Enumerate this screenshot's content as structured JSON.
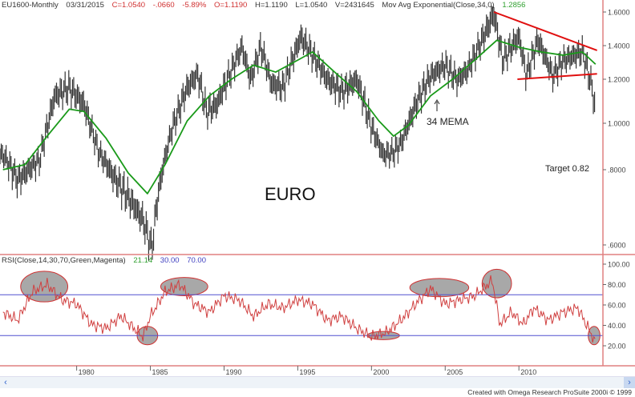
{
  "header": {
    "symbol": "EU1600-Monthly",
    "date": "03/31/2015",
    "close": "C=1.0540",
    "change": "-.0660",
    "change_pct": "-5.89%",
    "open": "O=1.1190",
    "high": "H=1.1190",
    "low": "L=1.0540",
    "volume": "V=2431645",
    "indicator": "Mov Avg Exponential(Close,34,0)",
    "indicator_value": "1.2856"
  },
  "rsi_header": {
    "label": "RSI(Close,14,30,70,Green,Magenta)",
    "value": "21.14",
    "low_level": "30.00",
    "high_level": "70.00"
  },
  "colors": {
    "price": "#333333",
    "ema": "#1a9a1a",
    "rsi": "#d04040",
    "levels": "#5050d0",
    "trendline": "#e01010",
    "axis": "#e08080",
    "highlight": "#a8a8a8",
    "header_red": "#d03030",
    "header_green": "#30a030",
    "header_blue": "#4040c0"
  },
  "footer": {
    "credit": "Created with Omega Research ProSuite 2000i © 1999"
  },
  "scrollbar": {
    "left_icon": "chevron-left-icon",
    "right_icon": "chevron-right-icon"
  },
  "chart_data": [
    {
      "type": "line",
      "panel": "price",
      "scale": "log",
      "annotations": {
        "title": "EURO",
        "ema_label": "34 MEMA",
        "target": "Target 0.82"
      },
      "y_ticks": [
        1.6,
        1.4,
        1.2,
        1.0,
        0.8,
        0.6
      ],
      "y_tick_labels": [
        "1.6000",
        "1.4000",
        "1.2000",
        "1.0000",
        ".8000",
        ".6000"
      ],
      "x_ticks": [
        1980,
        1985,
        1990,
        1995,
        2000,
        2005,
        2010
      ],
      "x_tick_labels": [
        "1980",
        "1985",
        "1990",
        "1995",
        "2000",
        "2005",
        "2010"
      ],
      "xlim": [
        1974.8,
        2015.7
      ],
      "price": [
        [
          1975.0,
          0.86
        ],
        [
          1976.0,
          0.77
        ],
        [
          1977.5,
          0.84
        ],
        [
          1978.5,
          1.12
        ],
        [
          1979.5,
          1.16
        ],
        [
          1980.5,
          1.08
        ],
        [
          1981.5,
          0.87
        ],
        [
          1982.5,
          0.78
        ],
        [
          1983.5,
          0.72
        ],
        [
          1984.5,
          0.66
        ],
        [
          1985.1,
          0.59
        ],
        [
          1985.5,
          0.72
        ],
        [
          1986.5,
          0.98
        ],
        [
          1987.5,
          1.16
        ],
        [
          1988.2,
          1.23
        ],
        [
          1988.8,
          1.05
        ],
        [
          1989.5,
          1.08
        ],
        [
          1990.5,
          1.25
        ],
        [
          1991.2,
          1.39
        ],
        [
          1991.8,
          1.2
        ],
        [
          1992.5,
          1.39
        ],
        [
          1993.2,
          1.18
        ],
        [
          1994.0,
          1.16
        ],
        [
          1995.2,
          1.45
        ],
        [
          1996.0,
          1.34
        ],
        [
          1997.0,
          1.2
        ],
        [
          1998.0,
          1.14
        ],
        [
          1999.0,
          1.2
        ],
        [
          2000.0,
          0.98
        ],
        [
          2000.8,
          0.86
        ],
        [
          2001.5,
          0.87
        ],
        [
          2002.0,
          0.91
        ],
        [
          2003.0,
          1.08
        ],
        [
          2004.0,
          1.22
        ],
        [
          2005.0,
          1.28
        ],
        [
          2005.8,
          1.2
        ],
        [
          2006.5,
          1.25
        ],
        [
          2007.5,
          1.43
        ],
        [
          2008.3,
          1.59
        ],
        [
          2008.9,
          1.31
        ],
        [
          2009.5,
          1.39
        ],
        [
          2010.0,
          1.45
        ],
        [
          2010.5,
          1.22
        ],
        [
          2011.3,
          1.43
        ],
        [
          2012.3,
          1.22
        ],
        [
          2013.0,
          1.31
        ],
        [
          2014.3,
          1.36
        ],
        [
          2014.9,
          1.18
        ],
        [
          2015.2,
          1.054
        ]
      ],
      "ema_34": [
        [
          1975.0,
          0.8
        ],
        [
          1976.5,
          0.82
        ],
        [
          1978.0,
          0.94
        ],
        [
          1979.5,
          1.06
        ],
        [
          1980.5,
          1.05
        ],
        [
          1982.0,
          0.93
        ],
        [
          1983.5,
          0.79
        ],
        [
          1984.8,
          0.73
        ],
        [
          1986.0,
          0.82
        ],
        [
          1987.5,
          1.01
        ],
        [
          1989.0,
          1.12
        ],
        [
          1990.5,
          1.2
        ],
        [
          1992.0,
          1.28
        ],
        [
          1993.5,
          1.24
        ],
        [
          1995.0,
          1.31
        ],
        [
          1996.0,
          1.36
        ],
        [
          1997.5,
          1.24
        ],
        [
          1999.0,
          1.14
        ],
        [
          2000.5,
          1.01
        ],
        [
          2001.5,
          0.94
        ],
        [
          2002.5,
          0.99
        ],
        [
          2004.0,
          1.12
        ],
        [
          2005.5,
          1.2
        ],
        [
          2007.0,
          1.31
        ],
        [
          2008.5,
          1.43
        ],
        [
          2010.0,
          1.39
        ],
        [
          2011.5,
          1.36
        ],
        [
          2013.0,
          1.34
        ],
        [
          2014.3,
          1.36
        ],
        [
          2015.2,
          1.2856
        ]
      ],
      "trendlines": [
        [
          [
            2008.3,
            1.6
          ],
          [
            2015.3,
            1.37
          ]
        ],
        [
          [
            2009.9,
            1.2
          ],
          [
            2015.3,
            1.23
          ]
        ]
      ]
    },
    {
      "type": "line",
      "panel": "rsi",
      "y_ticks": [
        100,
        80,
        60,
        40,
        20
      ],
      "y_tick_labels": [
        "100.00",
        "80.00",
        "60.00",
        "40.00",
        "20.00"
      ],
      "ylim": [
        0,
        100
      ],
      "levels": [
        30,
        70
      ],
      "rsi": [
        [
          1975,
          53
        ],
        [
          1976,
          45
        ],
        [
          1977,
          73
        ],
        [
          1978,
          80
        ],
        [
          1979,
          65
        ],
        [
          1980,
          61
        ],
        [
          1981,
          41
        ],
        [
          1982,
          37
        ],
        [
          1983,
          49
        ],
        [
          1984.5,
          29
        ],
        [
          1985,
          49
        ],
        [
          1986,
          73
        ],
        [
          1987,
          80
        ],
        [
          1988,
          61
        ],
        [
          1989,
          53
        ],
        [
          1990,
          69
        ],
        [
          1991,
          65
        ],
        [
          1992,
          49
        ],
        [
          1993,
          61
        ],
        [
          1994,
          57
        ],
        [
          1995,
          65
        ],
        [
          1996,
          61
        ],
        [
          1997,
          45
        ],
        [
          1998,
          49
        ],
        [
          1999,
          37
        ],
        [
          2000,
          29
        ],
        [
          2001,
          33
        ],
        [
          2002,
          45
        ],
        [
          2003,
          61
        ],
        [
          2004,
          76
        ],
        [
          2005,
          61
        ],
        [
          2006,
          65
        ],
        [
          2007,
          69
        ],
        [
          2008.2,
          84
        ],
        [
          2008.7,
          41
        ],
        [
          2009.5,
          53
        ],
        [
          2010.3,
          41
        ],
        [
          2011,
          57
        ],
        [
          2012,
          45
        ],
        [
          2013,
          53
        ],
        [
          2014,
          57
        ],
        [
          2015,
          29
        ],
        [
          2015.2,
          21.14
        ]
      ],
      "highlights": [
        [
          1977.8,
          78,
          1.6,
          15
        ],
        [
          1987.3,
          78,
          1.6,
          9
        ],
        [
          1984.8,
          30,
          0.7,
          9
        ],
        [
          2000.8,
          30,
          1.1,
          4
        ],
        [
          2004.6,
          77,
          2.0,
          9
        ],
        [
          2008.5,
          81,
          1.0,
          14
        ],
        [
          2015.1,
          30,
          0.4,
          9
        ]
      ]
    }
  ]
}
